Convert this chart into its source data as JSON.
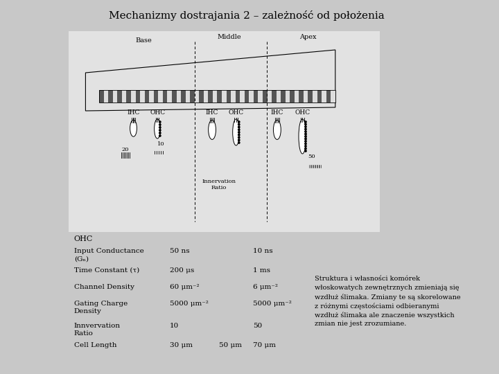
{
  "title": "Mechanizmy dostrajania 2 – zależność od położenia",
  "title_fontsize": 11,
  "bg_color": "#d8d8d8",
  "fig_bg": "#c8c8c8",
  "table_header": "OHC",
  "table_rows": [
    {
      "label": "Input Conductance\n(Gₙ)",
      "base": "50 ns",
      "apex": "10 ns",
      "middle": ""
    },
    {
      "label": "Time Constant (τ)",
      "base": "200 μs",
      "apex": "1 ms",
      "middle": ""
    },
    {
      "label": "Channel Density",
      "base": "60 μm⁻²",
      "apex": "6 μm⁻²",
      "middle": ""
    },
    {
      "label": "Gating Charge\nDensity",
      "base": "5000 μm⁻²",
      "apex": "5000 μm⁻²",
      "middle": ""
    },
    {
      "label": "Innvervation\nRatio",
      "base": "10",
      "apex": "50",
      "middle": ""
    },
    {
      "label": "Cell Length",
      "base": "30 μm",
      "apex": "70 μm",
      "middle": "50 μm"
    }
  ],
  "caption_lines": [
    "Struktura i własności komórek",
    "włoskowatych zewnętrznych zmieniają się",
    "wzdłuż ślimaka. Zmiany te są skorelowane",
    "z różnymi częstościami odbieranymi",
    "wzdłuż ślimaka ale znaczenie wszystkich",
    "zmian nie jest zrozumiane."
  ],
  "label_base": "Base",
  "label_middle": "Middle",
  "label_apex": "Apex",
  "label_ihc": "IHC",
  "label_ohc": "OHC",
  "label_innervation": "Innervation\nRatio",
  "num_20": "20",
  "num_10": "10",
  "num_50": "50"
}
